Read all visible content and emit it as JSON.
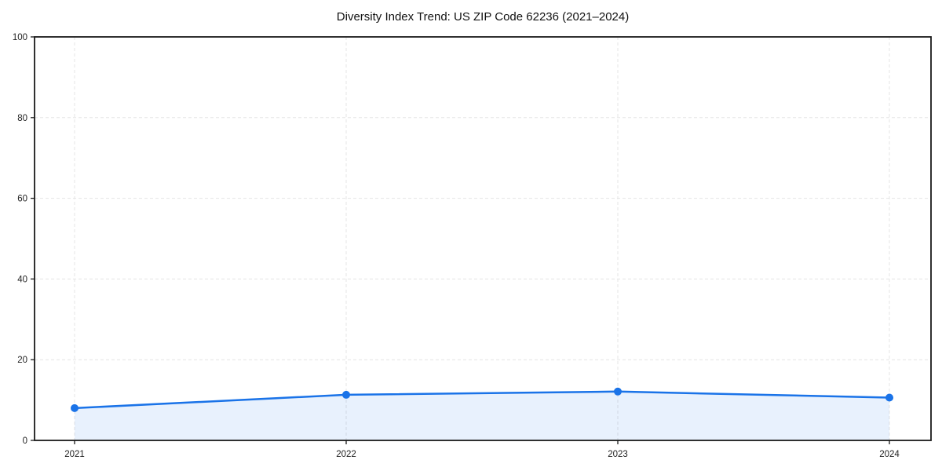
{
  "chart_data": {
    "type": "line",
    "title": "Diversity Index Trend: US ZIP Code 62236 (2021–2024)",
    "series_name": "Diversity Index",
    "x": [
      "2021",
      "2022",
      "2023",
      "2024"
    ],
    "values": [
      8.0,
      11.3,
      12.1,
      10.6
    ],
    "xlabel": "",
    "ylabel": "",
    "ylim": [
      0,
      100
    ],
    "yticks": [
      0,
      20,
      40,
      60,
      80,
      100
    ],
    "grid": "dashed-both-axes",
    "legend_position": "none",
    "colors": {
      "line": "#1a73e8",
      "marker": "#1a73e8",
      "area_fill": "#1a73e8",
      "area_opacity": 0.1,
      "gridline": "#e4e4e4",
      "spine": "#1a1a1a",
      "tick_label": "#222222",
      "background": "#ffffff"
    }
  }
}
